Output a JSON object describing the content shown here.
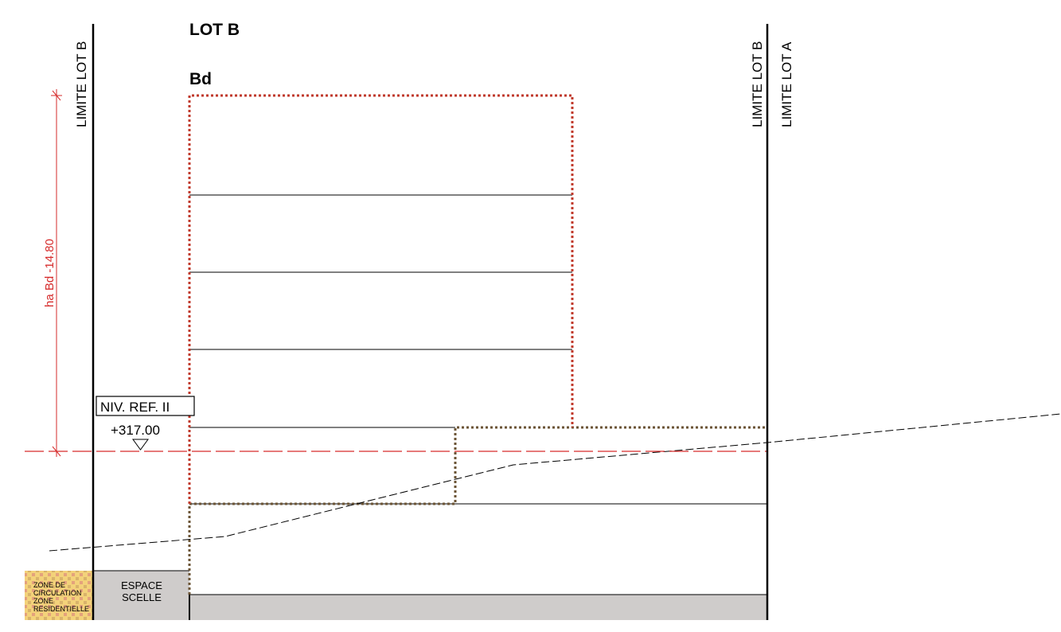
{
  "title": "LOT B",
  "building": "Bd",
  "limits": {
    "left": "LIMITE LOT B",
    "right_b": "LIMITE LOT B",
    "right_a": "LIMITE LOT A"
  },
  "height_dimension": "ha Bd -14.80",
  "reference": {
    "label": "NIV. REF. II",
    "elevation": "+317.00"
  },
  "zones": {
    "circulation": [
      "ZONE DE",
      "CIRCULATION",
      "ZONE",
      "RESIDENTIELLE"
    ],
    "sealed": [
      "ESPACE",
      "SCELLE"
    ]
  },
  "colors": {
    "limit_envelope": "#c0392b",
    "dimension": "#d62b2b",
    "underground": "#6b5436",
    "sealed_ground": "#cfcccb",
    "zone_fill": "#f3d27a",
    "zone_pattern": "#e4a27c"
  }
}
